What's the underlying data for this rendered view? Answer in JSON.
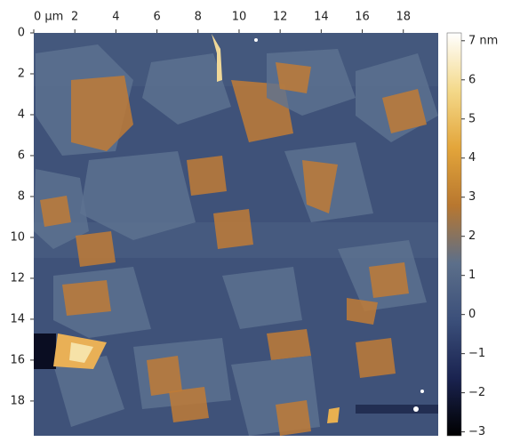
{
  "chart_data": {
    "type": "heatmap",
    "xticks": [
      {
        "value": 0,
        "label": "0 µm"
      },
      2,
      4,
      6,
      8,
      10,
      12,
      14,
      16,
      18
    ],
    "xlim": [
      0,
      19.7
    ],
    "yticks": [
      0,
      2,
      4,
      6,
      8,
      10,
      12,
      14,
      16,
      18
    ],
    "ylim": [
      0,
      19.7
    ],
    "colorbar": {
      "ticks": [
        {
          "value": 7,
          "label": "7 nm"
        },
        6,
        5,
        4,
        3,
        2,
        1,
        0,
        {
          "value": -1,
          "label": "−1"
        },
        {
          "value": -2,
          "label": "−2"
        },
        {
          "value": -3,
          "label": "−3"
        }
      ],
      "lim": [
        -3.1,
        7.2
      ],
      "colors": [
        "#000000",
        "#1a2350",
        "#3b4f7a",
        "#5c6f8a",
        "#b8772f",
        "#e3a53a",
        "#f4d98a",
        "#ffffff"
      ]
    }
  }
}
